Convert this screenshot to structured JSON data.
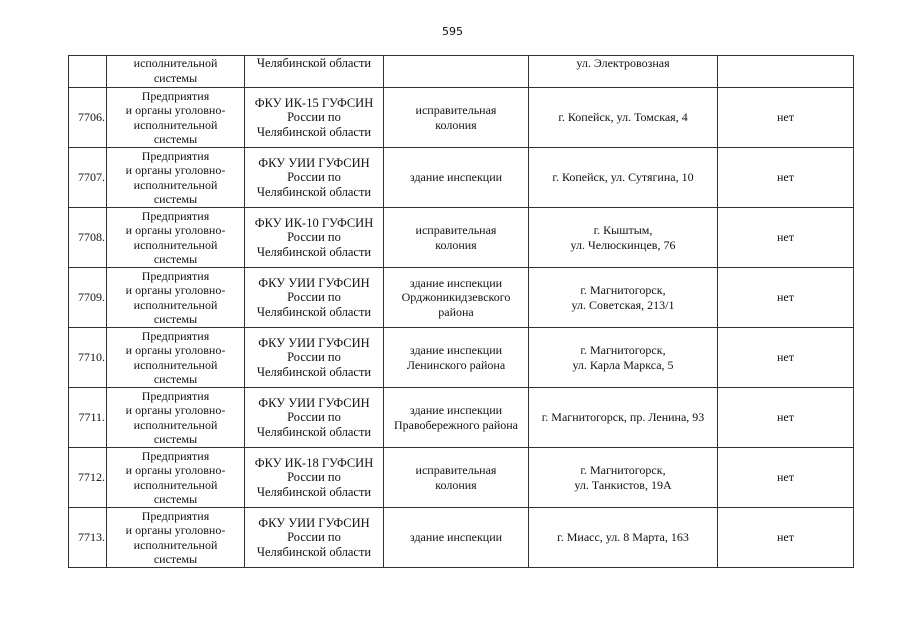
{
  "page_number": "595",
  "continuation_row": {
    "number": "",
    "sector": [
      "исполнительной",
      "системы"
    ],
    "organization": [
      "Челябинской области"
    ],
    "object_type": [],
    "address": [
      "ул. Электровозная"
    ],
    "note": ""
  },
  "rows": [
    {
      "number": "7706.",
      "sector": [
        "Предприятия",
        "и органы уголовно-",
        "исполнительной",
        "системы"
      ],
      "organization": [
        "ФКУ ИК-15 ГУФСИН",
        "России по",
        "Челябинской области"
      ],
      "object_type": [
        "исправительная",
        "колония"
      ],
      "address": [
        "г. Копейск, ул. Томская, 4"
      ],
      "note": "нет"
    },
    {
      "number": "7707.",
      "sector": [
        "Предприятия",
        "и органы уголовно-",
        "исполнительной",
        "системы"
      ],
      "organization": [
        "ФКУ УИИ ГУФСИН",
        "России по",
        "Челябинской области"
      ],
      "object_type": [
        "здание инспекции"
      ],
      "address": [
        "г. Копейск, ул. Сутягина, 10"
      ],
      "note": "нет"
    },
    {
      "number": "7708.",
      "sector": [
        "Предприятия",
        "и органы уголовно-",
        "исполнительной",
        "системы"
      ],
      "organization": [
        "ФКУ ИК-10 ГУФСИН",
        "России по",
        "Челябинской области"
      ],
      "object_type": [
        "исправительная",
        "колония"
      ],
      "address": [
        "г. Кыштым,",
        "ул. Челюскинцев, 76"
      ],
      "note": "нет"
    },
    {
      "number": "7709.",
      "sector": [
        "Предприятия",
        "и органы уголовно-",
        "исполнительной",
        "системы"
      ],
      "organization": [
        "ФКУ УИИ ГУФСИН",
        "России по",
        "Челябинской области"
      ],
      "object_type": [
        "здание инспекции",
        "Орджоникидзевского",
        "района"
      ],
      "address": [
        "г. Магнитогорск,",
        "ул. Советская, 213/1"
      ],
      "note": "нет"
    },
    {
      "number": "7710.",
      "sector": [
        "Предприятия",
        "и органы уголовно-",
        "исполнительной",
        "системы"
      ],
      "organization": [
        "ФКУ УИИ ГУФСИН",
        "России по",
        "Челябинской области"
      ],
      "object_type": [
        "здание инспекции",
        "Ленинского района"
      ],
      "address": [
        "г. Магнитогорск,",
        "ул. Карла Маркса, 5"
      ],
      "note": "нет"
    },
    {
      "number": "7711.",
      "sector": [
        "Предприятия",
        "и органы уголовно-",
        "исполнительной",
        "системы"
      ],
      "organization": [
        "ФКУ УИИ ГУФСИН",
        "России по",
        "Челябинской области"
      ],
      "object_type": [
        "здание инспекции",
        "Правобережного района"
      ],
      "address": [
        "г. Магнитогорск, пр. Ленина, 93"
      ],
      "note": "нет"
    },
    {
      "number": "7712.",
      "sector": [
        "Предприятия",
        "и органы уголовно-",
        "исполнительной",
        "системы"
      ],
      "organization": [
        "ФКУ ИК-18 ГУФСИН",
        "России по",
        "Челябинской области"
      ],
      "object_type": [
        "исправительная",
        "колония"
      ],
      "address": [
        "г. Магнитогорск,",
        "ул. Танкистов, 19А"
      ],
      "note": "нет"
    },
    {
      "number": "7713.",
      "sector": [
        "Предприятия",
        "и органы уголовно-",
        "исполнительной",
        "системы"
      ],
      "organization": [
        "ФКУ УИИ ГУФСИН",
        "России по",
        "Челябинской области"
      ],
      "object_type": [
        "здание инспекции"
      ],
      "address": [
        "г. Миасс, ул. 8 Марта, 163"
      ],
      "note": "нет"
    }
  ]
}
